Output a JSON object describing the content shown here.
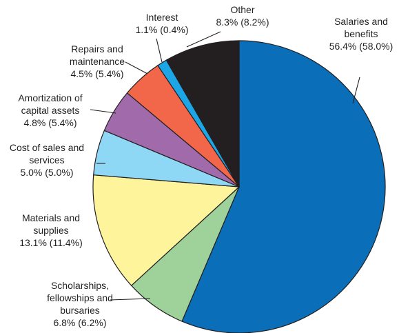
{
  "chart_data": {
    "type": "pie",
    "title": "",
    "slices": [
      {
        "name": "Salaries and benefits",
        "value": 56.4,
        "prior": 58.0,
        "text": "56.4% (58.0%)",
        "color": "#0a6eb8"
      },
      {
        "name": "Scholarships, fellowships and bursaries",
        "value": 6.8,
        "prior": 6.2,
        "text": "6.8% (6.2%)",
        "color": "#9fd19a"
      },
      {
        "name": "Materials and supplies",
        "value": 13.1,
        "prior": 11.4,
        "text": "13.1% (11.4%)",
        "color": "#fdf49c"
      },
      {
        "name": "Cost of sales and services",
        "value": 5.0,
        "prior": 5.0,
        "text": "5.0% (5.0%)",
        "color": "#8fd8f5"
      },
      {
        "name": "Amortization of capital assets",
        "value": 4.8,
        "prior": 5.4,
        "text": "4.8% (5.4%)",
        "color": "#a06aab"
      },
      {
        "name": "Repairs and maintenance",
        "value": 4.5,
        "prior": 5.4,
        "text": "4.5% (5.4%)",
        "color": "#f2674a"
      },
      {
        "name": "Interest",
        "value": 1.1,
        "prior": 0.4,
        "text": "1.1% (0.4%)",
        "color": "#1ca6e6"
      },
      {
        "name": "Other",
        "value": 8.3,
        "prior": 8.2,
        "text": "8.3% (8.2%)",
        "color": "#231f20"
      }
    ]
  },
  "labels": [
    {
      "lines": [
        "Salaries and",
        "benefits",
        "56.4% (58.0%)"
      ]
    },
    {
      "lines": [
        "Scholarships,",
        "fellowships and",
        "bursaries",
        "6.8% (6.2%)"
      ]
    },
    {
      "lines": [
        "Materials and",
        "supplies",
        "13.1% (11.4%)"
      ]
    },
    {
      "lines": [
        "Cost of sales and",
        "services",
        "5.0% (5.0%)"
      ]
    },
    {
      "lines": [
        "Amortization of",
        "capital assets",
        "4.8% (5.4%)"
      ]
    },
    {
      "lines": [
        "Repairs and",
        "maintenance",
        "4.5% (5.4%)"
      ]
    },
    {
      "lines": [
        "Interest",
        "1.1% (0.4%)"
      ]
    },
    {
      "lines": [
        "Other",
        "8.3% (8.2%)"
      ]
    }
  ]
}
